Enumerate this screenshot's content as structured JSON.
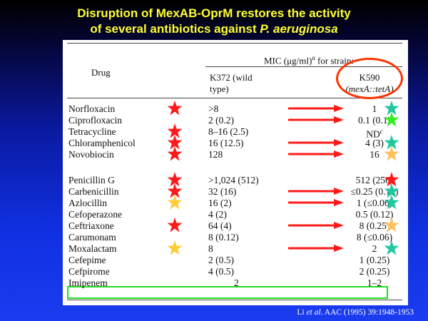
{
  "slide": {
    "title_line1": "Disruption of MexAB-OprM restores the activity",
    "title_line2_prefix": "of several antibiotics against ",
    "title_line2_italic": "P. aeruginosa"
  },
  "table": {
    "header": {
      "drug": "Drug",
      "mic_span": "MIC (μg/ml)",
      "mic_sup": "a",
      "mic_suffix": " for strain:",
      "col1_line1": "K372 (wild",
      "col1_line2": "type)",
      "col2_line1": "K590",
      "col2_line2": "(mexA::tetA)"
    },
    "rows": [
      {
        "drug": "Norfloxacin",
        "wt": ">8",
        "mut": "1"
      },
      {
        "drug": "Ciprofloxacin",
        "wt": "2 (0.2)",
        "mut": "0.1 (0.1)"
      },
      {
        "drug": "Tetracycline",
        "wt": "8–16 (2.5)",
        "mut": "ND",
        "mut_sup": "c"
      },
      {
        "drug": "Chloramphenicol",
        "wt": "16 (12.5)",
        "mut": "4 (3)"
      },
      {
        "drug": "Novobiocin",
        "wt": "128",
        "mut": "16"
      },
      {
        "drug": "Penicillin G",
        "wt": ">1,024 (512)",
        "mut": "512 (256)"
      },
      {
        "drug": "Carbenicillin",
        "wt": "32 (16)",
        "mut": "≤0.25 (0.12)"
      },
      {
        "drug": "Azlocillin",
        "wt": "16 (2)",
        "mut": "1 (≤0.06)"
      },
      {
        "drug": "Cefoperazone",
        "wt": "4 (2)",
        "mut": "0.5 (0.12)"
      },
      {
        "drug": "Ceftriaxone",
        "wt": "64 (4)",
        "mut": "8 (0.25)"
      },
      {
        "drug": "Carumonam",
        "wt": "8 (0.12)",
        "mut": "8 (≤0.06)"
      },
      {
        "drug": "Moxalactam",
        "wt": "8",
        "mut": "2"
      },
      {
        "drug": "Cefepime",
        "wt": "2 (0.5)",
        "mut": "1 (0.25)"
      },
      {
        "drug": "Cefpirome",
        "wt": "4 (0.5)",
        "mut": "2 (0.25)"
      },
      {
        "drug": "Imipenem",
        "wt": "2",
        "mut": "1–2"
      }
    ]
  },
  "annotations": {
    "colors": {
      "red": "#ff1a1a",
      "gold": "#ffcc33",
      "teal": "#22c8a0",
      "lime": "#33ee22",
      "peach": "#ffc060",
      "oval": "#ff3300",
      "box": "#22dd22"
    },
    "left_stars": [
      "red",
      "none",
      "red",
      "red",
      "red",
      "red",
      "red",
      "gold",
      "none",
      "red",
      "none",
      "gold",
      "none",
      "none",
      "none"
    ],
    "right_stars": [
      "teal",
      "lime",
      "none",
      "teal",
      "peach",
      "red",
      "teal",
      "teal",
      "none",
      "peach",
      "none",
      "teal",
      "none",
      "none",
      "none"
    ],
    "arrows": [
      true,
      true,
      false,
      true,
      true,
      false,
      true,
      true,
      false,
      true,
      false,
      true,
      false,
      false,
      false
    ]
  },
  "citation": {
    "author": "Li ",
    "etal": "et al",
    "rest": ". AAC (1995) 39:1948-1953"
  }
}
